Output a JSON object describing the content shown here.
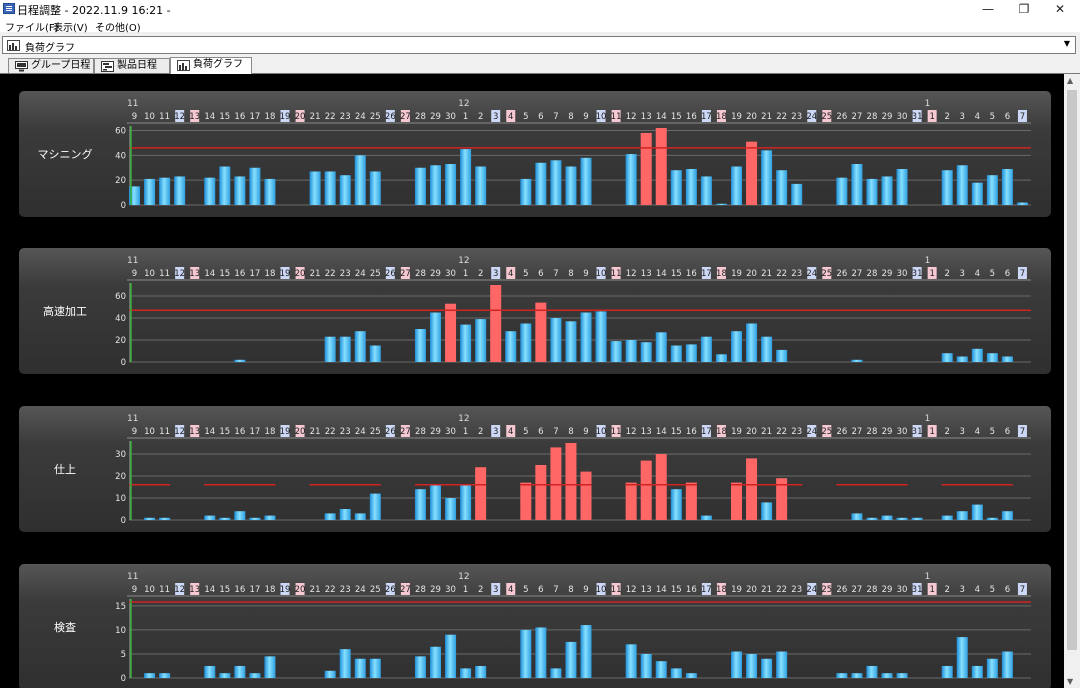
{
  "window": {
    "title": "日程調整 - 2022.11.9 16:21 -",
    "min": "—",
    "max": "❐",
    "close": "✕"
  },
  "menu": [
    "ファイル(F)",
    "表示(V)",
    "その他(O)"
  ],
  "view_select": {
    "value": "負荷グラフ",
    "icon": "chart-icon"
  },
  "tabs": [
    {
      "label": "グループ日程",
      "icon": "monitor-icon"
    },
    {
      "label": "製品日程",
      "icon": "gantt-icon"
    },
    {
      "label": "負荷グラフ",
      "icon": "chart-icon",
      "active": true
    }
  ],
  "colors": {
    "normal_bar": "#3fb4ec",
    "over_bar": "#ff6666",
    "capacity_line": "#d22323",
    "today_line": "#33aa33",
    "saturday_bg": "#ccd8f6",
    "sunday_bg": "#f6c8d2",
    "panel_text": "#ffffff"
  },
  "calendar": {
    "months": [
      {
        "label": "11",
        "start": 0
      },
      {
        "label": "12",
        "start": 22
      },
      {
        "label": "1",
        "start": 53
      }
    ],
    "days": [
      "9",
      "10",
      "11",
      "12",
      "13",
      "14",
      "15",
      "16",
      "17",
      "18",
      "19",
      "20",
      "21",
      "22",
      "23",
      "24",
      "25",
      "26",
      "27",
      "28",
      "29",
      "30",
      "1",
      "2",
      "3",
      "4",
      "5",
      "6",
      "7",
      "8",
      "9",
      "10",
      "11",
      "12",
      "13",
      "14",
      "15",
      "16",
      "17",
      "18",
      "19",
      "20",
      "21",
      "22",
      "23",
      "24",
      "25",
      "26",
      "27",
      "28",
      "29",
      "30",
      "31",
      "1",
      "2",
      "3",
      "4",
      "5",
      "6",
      "7"
    ],
    "saturdays": [
      3,
      10,
      17,
      24,
      31,
      38,
      45,
      52,
      59
    ],
    "sundays": [
      4,
      11,
      18,
      25,
      32,
      39,
      46,
      53
    ]
  },
  "chart_data": [
    {
      "type": "bar",
      "title": "マシニング",
      "yticks": [
        0,
        20,
        40,
        60
      ],
      "ylim": [
        0,
        62
      ],
      "capacity": [
        46
      ],
      "values": [
        15,
        21,
        22,
        23,
        0,
        22,
        31,
        23,
        30,
        21,
        0,
        0,
        27,
        27,
        24,
        40,
        27,
        0,
        0,
        30,
        32,
        33,
        45,
        31,
        0,
        0,
        21,
        34,
        36,
        31,
        38,
        0,
        0,
        41,
        58,
        62,
        28,
        29,
        23,
        1,
        31,
        51,
        44,
        28,
        17,
        0,
        0,
        22,
        33,
        21,
        23,
        29,
        0,
        0,
        28,
        32,
        18,
        24,
        29,
        2
      ],
      "over": [
        34,
        35,
        41
      ]
    },
    {
      "type": "bar",
      "title": "高速加工",
      "yticks": [
        0,
        20,
        40,
        60
      ],
      "ylim": [
        0,
        70
      ],
      "capacity": [
        47
      ],
      "values": [
        0,
        0,
        0,
        0,
        0,
        0,
        0,
        2,
        0,
        0,
        0,
        0,
        0,
        23,
        23,
        28,
        15,
        0,
        0,
        30,
        45,
        53,
        34,
        39,
        70,
        28,
        35,
        54,
        40,
        37,
        45,
        46,
        19,
        20,
        18,
        27,
        15,
        16,
        23,
        7,
        28,
        35,
        23,
        11,
        0,
        0,
        0,
        0,
        2,
        0,
        0,
        0,
        0,
        0,
        8,
        5,
        12,
        8,
        5,
        0
      ],
      "over": [
        21,
        24,
        27
      ]
    },
    {
      "type": "bar",
      "title": "仕上",
      "yticks": [
        0,
        10,
        20,
        30
      ],
      "ylim": [
        0,
        35
      ],
      "capacity": [
        16,
        16,
        16,
        0,
        0,
        16,
        16,
        16,
        16,
        16,
        0,
        0,
        16,
        16,
        16,
        16,
        16,
        0,
        0,
        16,
        16,
        16,
        16,
        16,
        0,
        0,
        16,
        16,
        16,
        16,
        16,
        0,
        0,
        16,
        16,
        16,
        16,
        16,
        0,
        0,
        16,
        16,
        16,
        16,
        16,
        0,
        0,
        16,
        16,
        16,
        16,
        16,
        0,
        0,
        16,
        16,
        16,
        16,
        16,
        0
      ],
      "values": [
        0,
        1,
        1,
        0,
        0,
        2,
        1,
        4,
        1,
        2,
        0,
        0,
        0,
        3,
        5,
        3,
        12,
        0,
        0,
        14,
        16,
        10,
        16,
        24,
        0,
        0,
        17,
        25,
        33,
        35,
        22,
        0,
        0,
        17,
        27,
        30,
        14,
        17,
        2,
        0,
        17,
        28,
        8,
        19,
        0,
        0,
        0,
        0,
        3,
        1,
        2,
        1,
        1,
        0,
        2,
        4,
        7,
        1,
        4,
        0
      ],
      "over": [
        23,
        26,
        27,
        28,
        29,
        30,
        33,
        34,
        35,
        37,
        40,
        41,
        43
      ]
    },
    {
      "type": "bar",
      "title": "検査",
      "yticks": [
        0,
        5,
        10,
        15
      ],
      "ylim": [
        0,
        16
      ],
      "capacity": [
        15.8
      ],
      "values": [
        0,
        1,
        1,
        0,
        0,
        2.5,
        1,
        2.5,
        1,
        4.5,
        0,
        0,
        0,
        1.5,
        6,
        4,
        4,
        0,
        0,
        4.5,
        6.5,
        9,
        2,
        2.5,
        0,
        0,
        10,
        10.5,
        2,
        7.5,
        11,
        0,
        0,
        7,
        5,
        3.5,
        2,
        1,
        0,
        0,
        5.5,
        5,
        4,
        5.5,
        0,
        0,
        0,
        1,
        1,
        2.5,
        1,
        1,
        0,
        0,
        2.5,
        8.5,
        2.5,
        4,
        5.5,
        0
      ],
      "over": []
    }
  ]
}
